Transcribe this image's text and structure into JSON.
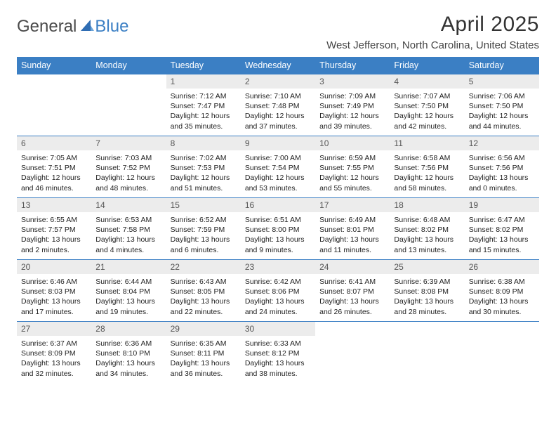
{
  "logo": {
    "text1": "General",
    "text2": "Blue"
  },
  "title": "April 2025",
  "location": "West Jefferson, North Carolina, United States",
  "colors": {
    "header_bg": "#3b7fc4",
    "header_text": "#ffffff",
    "daynum_bg": "#ececec",
    "border": "#3b7fc4",
    "page_bg": "#ffffff"
  },
  "weekdays": [
    "Sunday",
    "Monday",
    "Tuesday",
    "Wednesday",
    "Thursday",
    "Friday",
    "Saturday"
  ],
  "weeks": [
    [
      null,
      null,
      {
        "n": "1",
        "sr": "Sunrise: 7:12 AM",
        "ss": "Sunset: 7:47 PM",
        "dl": "Daylight: 12 hours and 35 minutes."
      },
      {
        "n": "2",
        "sr": "Sunrise: 7:10 AM",
        "ss": "Sunset: 7:48 PM",
        "dl": "Daylight: 12 hours and 37 minutes."
      },
      {
        "n": "3",
        "sr": "Sunrise: 7:09 AM",
        "ss": "Sunset: 7:49 PM",
        "dl": "Daylight: 12 hours and 39 minutes."
      },
      {
        "n": "4",
        "sr": "Sunrise: 7:07 AM",
        "ss": "Sunset: 7:50 PM",
        "dl": "Daylight: 12 hours and 42 minutes."
      },
      {
        "n": "5",
        "sr": "Sunrise: 7:06 AM",
        "ss": "Sunset: 7:50 PM",
        "dl": "Daylight: 12 hours and 44 minutes."
      }
    ],
    [
      {
        "n": "6",
        "sr": "Sunrise: 7:05 AM",
        "ss": "Sunset: 7:51 PM",
        "dl": "Daylight: 12 hours and 46 minutes."
      },
      {
        "n": "7",
        "sr": "Sunrise: 7:03 AM",
        "ss": "Sunset: 7:52 PM",
        "dl": "Daylight: 12 hours and 48 minutes."
      },
      {
        "n": "8",
        "sr": "Sunrise: 7:02 AM",
        "ss": "Sunset: 7:53 PM",
        "dl": "Daylight: 12 hours and 51 minutes."
      },
      {
        "n": "9",
        "sr": "Sunrise: 7:00 AM",
        "ss": "Sunset: 7:54 PM",
        "dl": "Daylight: 12 hours and 53 minutes."
      },
      {
        "n": "10",
        "sr": "Sunrise: 6:59 AM",
        "ss": "Sunset: 7:55 PM",
        "dl": "Daylight: 12 hours and 55 minutes."
      },
      {
        "n": "11",
        "sr": "Sunrise: 6:58 AM",
        "ss": "Sunset: 7:56 PM",
        "dl": "Daylight: 12 hours and 58 minutes."
      },
      {
        "n": "12",
        "sr": "Sunrise: 6:56 AM",
        "ss": "Sunset: 7:56 PM",
        "dl": "Daylight: 13 hours and 0 minutes."
      }
    ],
    [
      {
        "n": "13",
        "sr": "Sunrise: 6:55 AM",
        "ss": "Sunset: 7:57 PM",
        "dl": "Daylight: 13 hours and 2 minutes."
      },
      {
        "n": "14",
        "sr": "Sunrise: 6:53 AM",
        "ss": "Sunset: 7:58 PM",
        "dl": "Daylight: 13 hours and 4 minutes."
      },
      {
        "n": "15",
        "sr": "Sunrise: 6:52 AM",
        "ss": "Sunset: 7:59 PM",
        "dl": "Daylight: 13 hours and 6 minutes."
      },
      {
        "n": "16",
        "sr": "Sunrise: 6:51 AM",
        "ss": "Sunset: 8:00 PM",
        "dl": "Daylight: 13 hours and 9 minutes."
      },
      {
        "n": "17",
        "sr": "Sunrise: 6:49 AM",
        "ss": "Sunset: 8:01 PM",
        "dl": "Daylight: 13 hours and 11 minutes."
      },
      {
        "n": "18",
        "sr": "Sunrise: 6:48 AM",
        "ss": "Sunset: 8:02 PM",
        "dl": "Daylight: 13 hours and 13 minutes."
      },
      {
        "n": "19",
        "sr": "Sunrise: 6:47 AM",
        "ss": "Sunset: 8:02 PM",
        "dl": "Daylight: 13 hours and 15 minutes."
      }
    ],
    [
      {
        "n": "20",
        "sr": "Sunrise: 6:46 AM",
        "ss": "Sunset: 8:03 PM",
        "dl": "Daylight: 13 hours and 17 minutes."
      },
      {
        "n": "21",
        "sr": "Sunrise: 6:44 AM",
        "ss": "Sunset: 8:04 PM",
        "dl": "Daylight: 13 hours and 19 minutes."
      },
      {
        "n": "22",
        "sr": "Sunrise: 6:43 AM",
        "ss": "Sunset: 8:05 PM",
        "dl": "Daylight: 13 hours and 22 minutes."
      },
      {
        "n": "23",
        "sr": "Sunrise: 6:42 AM",
        "ss": "Sunset: 8:06 PM",
        "dl": "Daylight: 13 hours and 24 minutes."
      },
      {
        "n": "24",
        "sr": "Sunrise: 6:41 AM",
        "ss": "Sunset: 8:07 PM",
        "dl": "Daylight: 13 hours and 26 minutes."
      },
      {
        "n": "25",
        "sr": "Sunrise: 6:39 AM",
        "ss": "Sunset: 8:08 PM",
        "dl": "Daylight: 13 hours and 28 minutes."
      },
      {
        "n": "26",
        "sr": "Sunrise: 6:38 AM",
        "ss": "Sunset: 8:09 PM",
        "dl": "Daylight: 13 hours and 30 minutes."
      }
    ],
    [
      {
        "n": "27",
        "sr": "Sunrise: 6:37 AM",
        "ss": "Sunset: 8:09 PM",
        "dl": "Daylight: 13 hours and 32 minutes."
      },
      {
        "n": "28",
        "sr": "Sunrise: 6:36 AM",
        "ss": "Sunset: 8:10 PM",
        "dl": "Daylight: 13 hours and 34 minutes."
      },
      {
        "n": "29",
        "sr": "Sunrise: 6:35 AM",
        "ss": "Sunset: 8:11 PM",
        "dl": "Daylight: 13 hours and 36 minutes."
      },
      {
        "n": "30",
        "sr": "Sunrise: 6:33 AM",
        "ss": "Sunset: 8:12 PM",
        "dl": "Daylight: 13 hours and 38 minutes."
      },
      null,
      null,
      null
    ]
  ]
}
